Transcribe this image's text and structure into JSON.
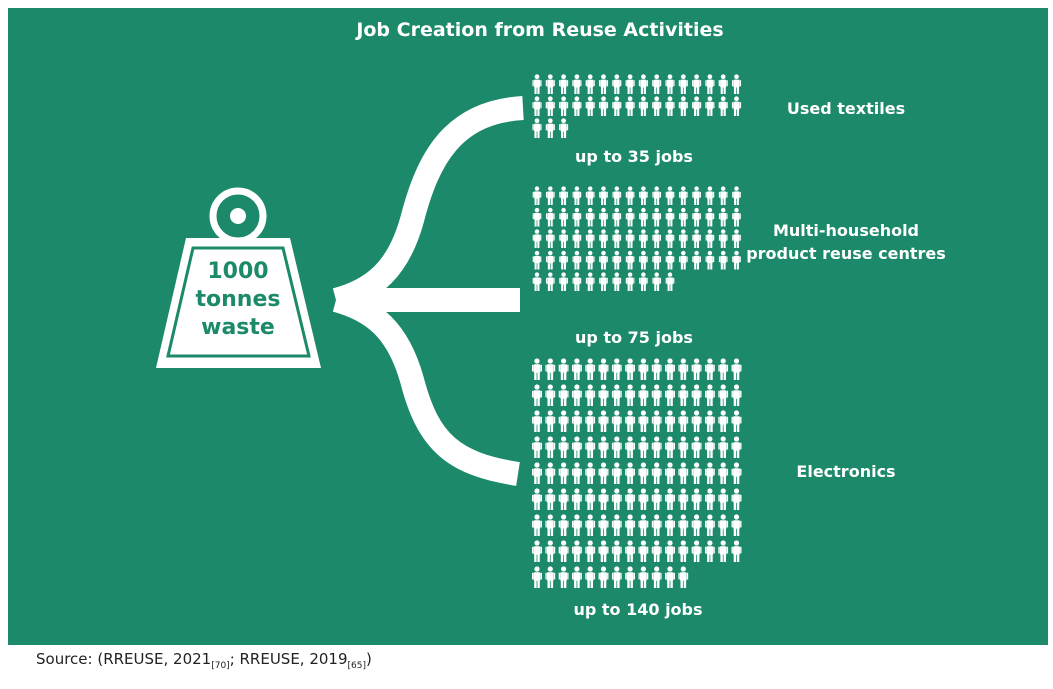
{
  "title": "Job Creation from Reuse Activities",
  "weight": {
    "line1": "1000",
    "line2": "tonnes",
    "line3": "waste"
  },
  "colors": {
    "background": "#1c8a6a",
    "foreground": "#ffffff",
    "page": "#ffffff",
    "source_text": "#222222"
  },
  "icons": {
    "weight": "weight-icon",
    "person": "person-icon"
  },
  "categories": [
    {
      "name": "Used textiles",
      "jobs": 35,
      "count_label": "up to 35 jobs"
    },
    {
      "name_line1": "Multi-household",
      "name_line2": "product reuse centres",
      "jobs": 75,
      "count_label": "up to 75 jobs"
    },
    {
      "name": "Electronics",
      "jobs": 140,
      "count_label": "up to 140 jobs"
    }
  ],
  "source": {
    "prefix": "Source: (RREUSE, 2021",
    "ref1": "[70]",
    "middle": "; RREUSE, 2019",
    "ref2": "[65]",
    "suffix": ")"
  }
}
